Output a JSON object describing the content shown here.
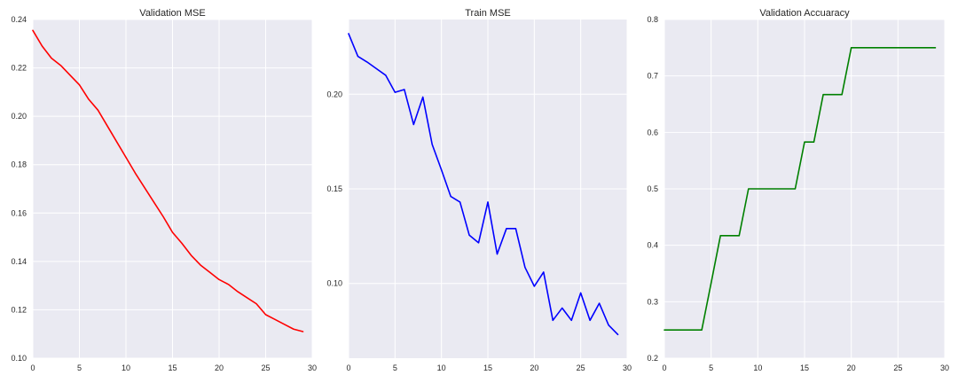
{
  "chart_data": [
    {
      "type": "line",
      "title": "Validation MSE",
      "xlabel": "",
      "ylabel": "",
      "xlim": [
        0,
        30
      ],
      "ylim": [
        0.1,
        0.24
      ],
      "xticks": [
        0,
        5,
        10,
        15,
        20,
        25,
        30
      ],
      "yticks": [
        0.1,
        0.12,
        0.14,
        0.16,
        0.18,
        0.2,
        0.22,
        0.24
      ],
      "ytick_labels": [
        "0.10",
        "0.12",
        "0.14",
        "0.16",
        "0.18",
        "0.20",
        "0.22",
        "0.24"
      ],
      "grid": true,
      "color": "#ff0000",
      "x": [
        0,
        1,
        2,
        3,
        4,
        5,
        6,
        7,
        8,
        9,
        10,
        11,
        12,
        13,
        14,
        15,
        16,
        17,
        18,
        19,
        20,
        21,
        22,
        23,
        24,
        25,
        26,
        27,
        28,
        29
      ],
      "y": [
        0.2355,
        0.229,
        0.224,
        0.221,
        0.217,
        0.213,
        0.207,
        0.2025,
        0.196,
        0.1895,
        0.183,
        0.1765,
        0.1705,
        0.1645,
        0.1585,
        0.152,
        0.1475,
        0.1425,
        0.1385,
        0.1355,
        0.1325,
        0.1305,
        0.1275,
        0.125,
        0.1225,
        0.118,
        0.116,
        0.114,
        0.112,
        0.111
      ]
    },
    {
      "type": "line",
      "title": "Train MSE",
      "xlabel": "",
      "ylabel": "",
      "xlim": [
        0,
        30
      ],
      "ylim": [
        0.0605,
        0.2395
      ],
      "xticks": [
        0,
        5,
        10,
        15,
        20,
        25,
        30
      ],
      "yticks": [
        0.1,
        0.15,
        0.2
      ],
      "ytick_labels": [
        "0.10",
        "0.15",
        "0.20"
      ],
      "grid": true,
      "color": "#0000ff",
      "x": [
        0,
        1,
        2,
        3,
        4,
        5,
        6,
        7,
        8,
        9,
        10,
        11,
        12,
        13,
        14,
        15,
        16,
        17,
        18,
        19,
        20,
        21,
        22,
        23,
        24,
        25,
        26,
        27,
        28,
        29
      ],
      "y": [
        0.232,
        0.22,
        0.217,
        0.2135,
        0.21,
        0.201,
        0.2025,
        0.184,
        0.1985,
        0.1735,
        0.16,
        0.146,
        0.143,
        0.1255,
        0.1215,
        0.143,
        0.1155,
        0.129,
        0.129,
        0.1085,
        0.0985,
        0.106,
        0.0805,
        0.087,
        0.0805,
        0.095,
        0.0805,
        0.0895,
        0.078,
        0.073
      ]
    },
    {
      "type": "line",
      "title": "Validation Accuaracy",
      "xlabel": "",
      "ylabel": "",
      "xlim": [
        0,
        30
      ],
      "ylim": [
        0.2,
        0.8
      ],
      "xticks": [
        0,
        5,
        10,
        15,
        20,
        25,
        30
      ],
      "yticks": [
        0.2,
        0.3,
        0.4,
        0.5,
        0.6,
        0.7,
        0.8
      ],
      "ytick_labels": [
        "0.2",
        "0.3",
        "0.4",
        "0.5",
        "0.6",
        "0.7",
        "0.8"
      ],
      "grid": true,
      "color": "#008000",
      "x": [
        0,
        1,
        2,
        3,
        4,
        5,
        6,
        7,
        8,
        9,
        10,
        11,
        12,
        13,
        14,
        15,
        16,
        17,
        18,
        19,
        20,
        21,
        22,
        23,
        24,
        25,
        26,
        27,
        28,
        29
      ],
      "y": [
        0.25,
        0.25,
        0.25,
        0.25,
        0.25,
        0.333,
        0.417,
        0.417,
        0.417,
        0.5,
        0.5,
        0.5,
        0.5,
        0.5,
        0.5,
        0.583,
        0.583,
        0.667,
        0.667,
        0.667,
        0.75,
        0.75,
        0.75,
        0.75,
        0.75,
        0.75,
        0.75,
        0.75,
        0.75,
        0.75
      ]
    }
  ]
}
